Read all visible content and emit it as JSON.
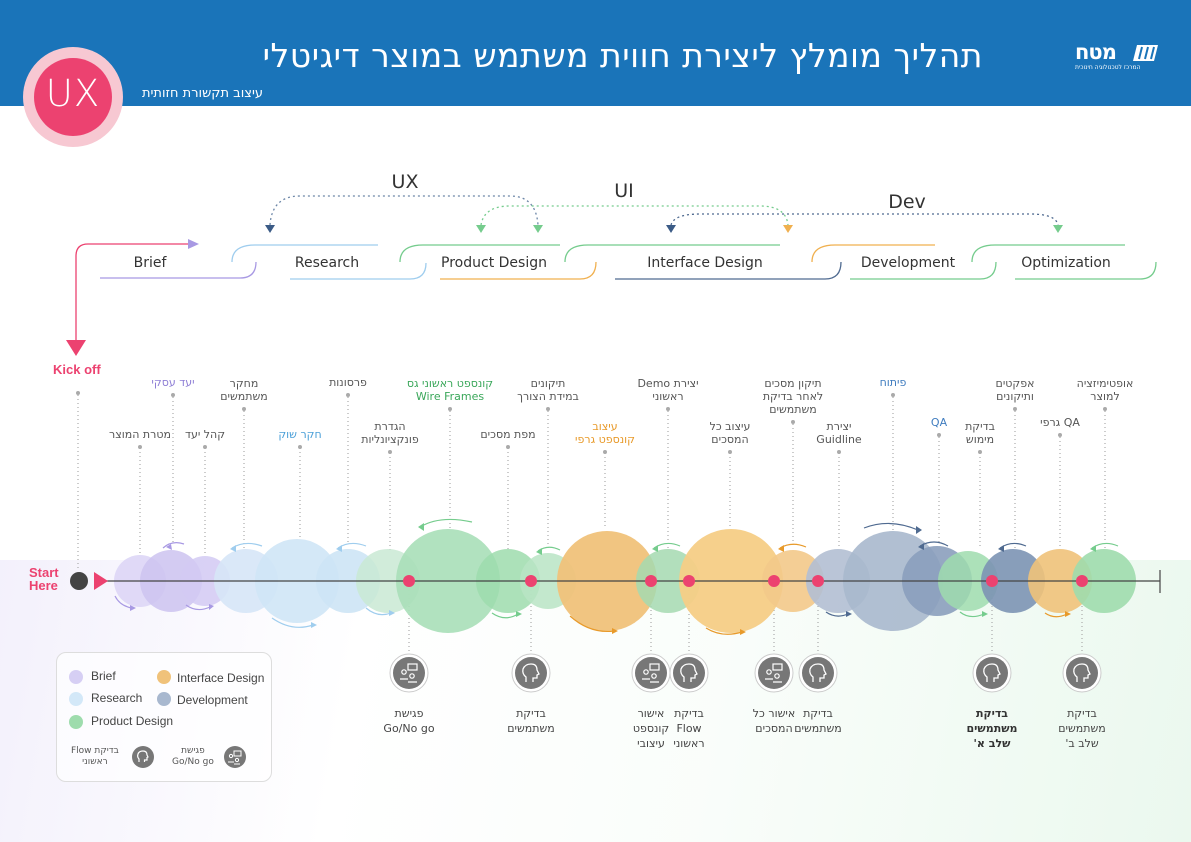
{
  "header": {
    "title": "תהליך מומלץ ליצירת חווית משתמש במוצר דיגיטלי",
    "subtitle": "עיצוב תקשורת חזותית",
    "logo_name": "מטח",
    "logo_tagline": "המרכז לטכנולוגיה חינוכית",
    "badge": "UX",
    "color": "#1a74b9"
  },
  "groups": {
    "ux": "UX",
    "ui": "UI",
    "dev": "Dev"
  },
  "phases": [
    {
      "label": "Brief",
      "color": "#a899e3"
    },
    {
      "label": "Research",
      "color": "#9fcdee"
    },
    {
      "label": "Product Design",
      "color": "#75cc8d"
    },
    {
      "label": "Interface  Design",
      "color": "#f0b04f"
    },
    {
      "label": "Development",
      "color": "#7c93b4"
    },
    {
      "label": "Optimization",
      "color": "#75cc8d"
    }
  ],
  "timeline": {
    "kick_off": "Kick off",
    "start_here": [
      "Start",
      "Here"
    ]
  },
  "steps_top": [
    {
      "text": [
        "יעד עסקי"
      ],
      "color": "#8f7fd6"
    },
    {
      "text": [
        "מחקר",
        "משתמשים"
      ],
      "color": "#555555"
    },
    {
      "text": [
        "פרסונות"
      ],
      "color": "#555555"
    },
    {
      "text": [
        "קונספט ראשוני גס",
        "Wire Frames"
      ],
      "color": "#3aa75a"
    },
    {
      "text": [
        "תיקונים",
        "במידת הצורך"
      ],
      "color": "#555555"
    },
    {
      "text": [
        "יצירת Demo",
        "ראשוני"
      ],
      "color": "#555555"
    },
    {
      "text": [
        "תיקון  מסכים",
        "לאחר בדיקת",
        "משתמשים"
      ],
      "color": "#555555"
    },
    {
      "text": [
        "פיתוח"
      ],
      "color": "#3f7cbf"
    },
    {
      "text": [
        "אפקטים",
        "ותיקונים"
      ],
      "color": "#555555"
    },
    {
      "text": [
        "אופטימיזציה",
        "למוצר"
      ],
      "color": "#555555"
    }
  ],
  "steps_mid": [
    {
      "text": [
        "מטרת המוצר"
      ],
      "color": "#555555"
    },
    {
      "text": [
        "קהל יעד"
      ],
      "color": "#555555"
    },
    {
      "text": [
        "חקר שוק"
      ],
      "color": "#4a9fd8"
    },
    {
      "text": [
        "הגדרת",
        "פונקציונליות"
      ],
      "color": "#555555"
    },
    {
      "text": [
        "מפת מסכים"
      ],
      "color": "#555555"
    },
    {
      "text": [
        "עיצוב",
        "קונספט גרפי"
      ],
      "color": "#e89a2a"
    },
    {
      "text": [
        "עיצוב כל",
        "המסכים"
      ],
      "color": "#555555"
    },
    {
      "text": [
        "יצירת",
        "Guidline"
      ],
      "color": "#555555"
    },
    {
      "text": [
        "QA"
      ],
      "color": "#3f7cbf"
    },
    {
      "text": [
        "בדיקת",
        "מימוש"
      ],
      "color": "#555555"
    },
    {
      "text": [
        "QA גרפי"
      ],
      "color": "#555555"
    }
  ],
  "milestones": [
    {
      "text": [
        "פגישת",
        "Go/No go"
      ],
      "icon": "meeting-icon",
      "bold": false
    },
    {
      "text": [
        "בדיקת",
        "משתמשים"
      ],
      "icon": "user-head-icon",
      "bold": false
    },
    {
      "text": [
        "אישור",
        "קונספט",
        "עיצובי"
      ],
      "icon": "meeting-icon",
      "bold": false
    },
    {
      "text": [
        "בדיקת",
        "Flow",
        "ראשוני"
      ],
      "icon": "user-head-icon",
      "bold": false
    },
    {
      "text": [
        "אישור כל",
        "המסכים"
      ],
      "icon": "meeting-icon",
      "bold": false
    },
    {
      "text": [
        "בדיקת",
        "משתמשים"
      ],
      "icon": "user-head-icon",
      "bold": false
    },
    {
      "text": [
        "בדיקת",
        "משתמשים",
        "שלב א'"
      ],
      "icon": "user-head-icon",
      "bold": true
    },
    {
      "text": [
        "בדיקת",
        "משתמשים",
        "שלב ב'"
      ],
      "icon": "user-head-icon",
      "bold": false
    }
  ],
  "legend": {
    "items": [
      {
        "label": "Brief",
        "color": "#d6cff4"
      },
      {
        "label": "Interface Design",
        "color": "#f0c27a"
      },
      {
        "label": "Research",
        "color": "#d3e8f8"
      },
      {
        "label": "Development",
        "color": "#a8b8cf"
      },
      {
        "label": "Product Design",
        "color": "#9edcad"
      }
    ],
    "icon_meeting": [
      "פגישת",
      "Go/No go"
    ],
    "icon_test": [
      "בדיקת Flow",
      "ראשוני"
    ]
  }
}
